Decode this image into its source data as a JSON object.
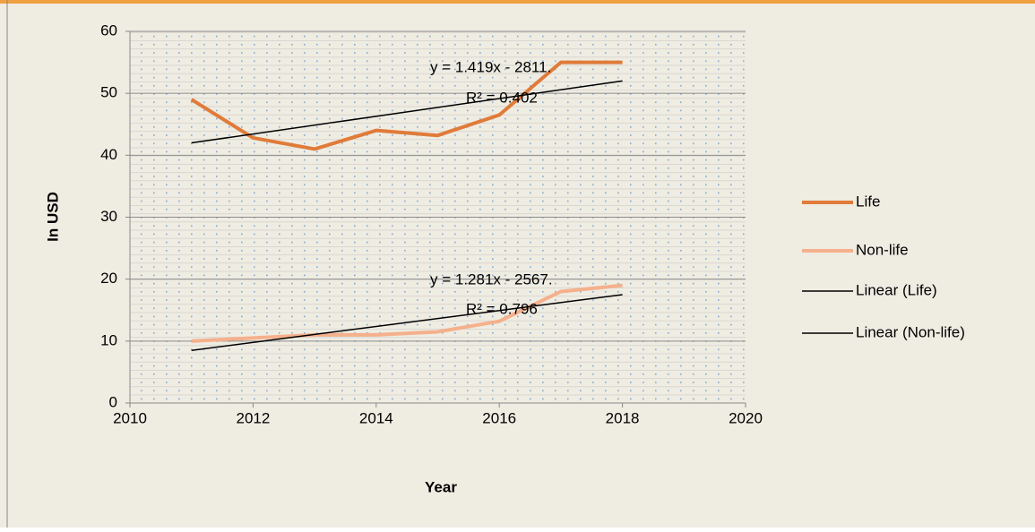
{
  "chart_data": {
    "type": "line",
    "xlabel": "Year",
    "ylabel": "In USD",
    "xlim": [
      2010,
      2020
    ],
    "xticks": [
      2010,
      2012,
      2014,
      2016,
      2018,
      2020
    ],
    "ylim": [
      0,
      60
    ],
    "yticks": [
      0,
      10,
      20,
      30,
      40,
      50,
      60
    ],
    "grid": true,
    "legend": "right",
    "series": [
      {
        "name": "Life",
        "color": "#e07b39",
        "x": [
          2011,
          2012,
          2013,
          2014,
          2015,
          2016,
          2017,
          2018
        ],
        "values": [
          49,
          42.8,
          41,
          44,
          43.2,
          46.5,
          55,
          55
        ]
      },
      {
        "name": "Non-life",
        "color": "#f5b08c",
        "x": [
          2011,
          2012,
          2013,
          2014,
          2015,
          2016,
          2017,
          2018
        ],
        "values": [
          10,
          10.5,
          11,
          11,
          11.5,
          13.2,
          18,
          19
        ]
      },
      {
        "name": "Linear (Life)",
        "color": "#000000",
        "x": [
          2011,
          2018
        ],
        "values": [
          42,
          52
        ]
      },
      {
        "name": "Linear (Non-life)",
        "color": "#000000",
        "x": [
          2011,
          2018
        ],
        "values": [
          8.5,
          17.5
        ]
      }
    ],
    "annotations": [
      "y = 1.419x - 2811.",
      "R² = 0.402",
      "y = 1.281x - 2567.",
      "R² = 0.796"
    ]
  }
}
